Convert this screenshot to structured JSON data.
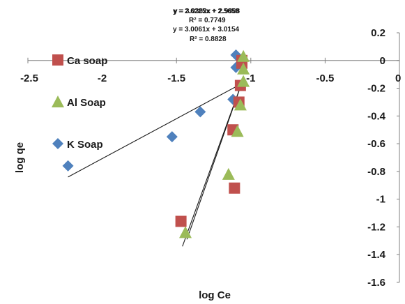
{
  "chart_data": {
    "type": "scatter",
    "xlabel": "log Ce",
    "ylabel": "log qe",
    "xlim": [
      -2.5,
      0
    ],
    "ylim": [
      -1.6,
      0.2
    ],
    "x_ticks": [
      "-2.5",
      "-2",
      "-1.5",
      "-1",
      "-0.5",
      "0"
    ],
    "y_ticks": [
      "0.2",
      "0",
      "-0.2",
      "-0.4",
      "-0.6",
      "-0.8",
      "-1",
      "-1.2",
      "-1.4",
      "-1.6"
    ],
    "grid": false,
    "legend_position": "left",
    "series": [
      {
        "name": "Ca soap",
        "marker": "square",
        "color": "#c0504d",
        "points": [
          {
            "x": -1.06,
            "y": 0.0
          },
          {
            "x": -1.06,
            "y": -0.02
          },
          {
            "x": -1.07,
            "y": -0.18
          },
          {
            "x": -1.08,
            "y": -0.3
          },
          {
            "x": -1.12,
            "y": -0.5
          },
          {
            "x": -1.11,
            "y": -0.92
          },
          {
            "x": -1.47,
            "y": -1.16
          }
        ]
      },
      {
        "name": "Al Soap",
        "marker": "triangle",
        "color": "#9bbb59",
        "points": [
          {
            "x": -1.05,
            "y": 0.03
          },
          {
            "x": -1.05,
            "y": -0.06
          },
          {
            "x": -1.05,
            "y": -0.15
          },
          {
            "x": -1.07,
            "y": -0.32
          },
          {
            "x": -1.09,
            "y": -0.51
          },
          {
            "x": -1.15,
            "y": -0.82
          },
          {
            "x": -1.44,
            "y": -1.24
          }
        ]
      },
      {
        "name": "K Soap",
        "marker": "diamond",
        "color": "#4f81bd",
        "points": [
          {
            "x": -1.1,
            "y": 0.04
          },
          {
            "x": -1.1,
            "y": -0.05
          },
          {
            "x": -1.12,
            "y": -0.28
          },
          {
            "x": -1.34,
            "y": -0.37
          },
          {
            "x": -1.53,
            "y": -0.55
          },
          {
            "x": -2.23,
            "y": -0.76
          }
        ]
      }
    ],
    "trendlines": [
      {
        "x_range": [
          -2.23,
          -1.05
        ],
        "y_range": [
          -0.84,
          -0.16
        ]
      },
      {
        "x_range": [
          -1.46,
          -1.05
        ],
        "y_range": [
          -1.34,
          -0.13
        ]
      },
      {
        "x_range": [
          -1.43,
          -1.05
        ],
        "y_range": [
          -1.29,
          -0.13
        ]
      }
    ],
    "equations": [
      "y = 2.6225x + 2.5659",
      "y = 3.0061x + 3.0154",
      "R² = 0.8828"
    ],
    "equation_overlap_fragments": [
      "y = 3.0362x + 2.9868",
      "R² = 0.7749"
    ]
  }
}
